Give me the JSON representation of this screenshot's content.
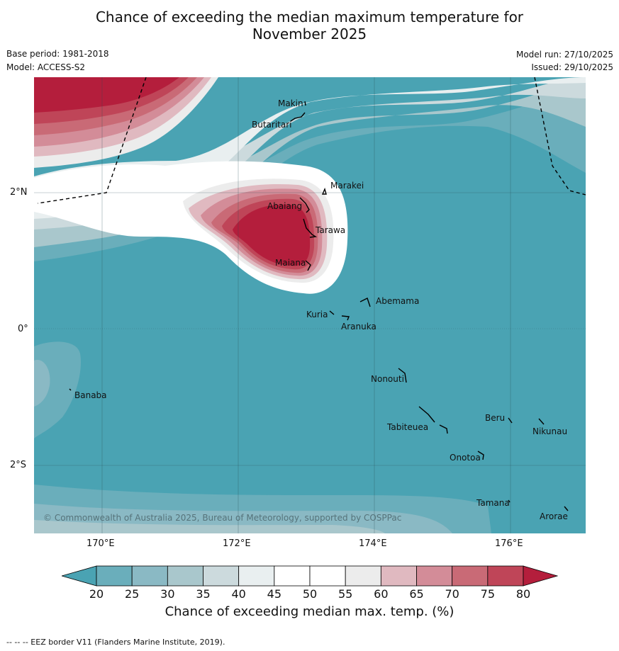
{
  "title_line1": "Chance of exceeding the median maximum temperature for",
  "title_line2": "November 2025",
  "meta": {
    "base_period": "Base period: 1981-2018",
    "model": "Model: ACCESS-S2",
    "model_run": "Model run: 27/10/2025",
    "issued": "Issued: 29/10/2025"
  },
  "map": {
    "lat_labels": [
      "2°N",
      "0°",
      "2°S"
    ],
    "lon_labels": [
      "170°E",
      "172°E",
      "174°E",
      "176°E"
    ],
    "places": [
      "Makin",
      "Butaritari",
      "Marakei",
      "Abaiang",
      "Tarawa",
      "Maiana",
      "Abemama",
      "Kuria",
      "Aranuka",
      "Nonouti",
      "Banaba",
      "Beru",
      "Tabiteuea",
      "Nikunau",
      "Onotoa",
      "Tamana",
      "Arorae"
    ],
    "copyright": "© Commonwealth of Australia 2025, Bureau of Meteorology, supported by COSPPac"
  },
  "colorbar": {
    "ticks": [
      "20",
      "25",
      "30",
      "35",
      "40",
      "45",
      "50",
      "55",
      "60",
      "65",
      "70",
      "75",
      "80"
    ],
    "colors": [
      "#6aaebb",
      "#8ab9c4",
      "#a9c7cc",
      "#ccdadd",
      "#e9eff0",
      "#ffffff",
      "#ffffff",
      "#ececec",
      "#e0b9c0",
      "#d38c98",
      "#c96a76",
      "#bf4558"
    ],
    "under_color": "#4aa3b3",
    "over_color": "#b41e3c",
    "title": "Chance of exceeding median max. temp. (%)"
  },
  "footer": "--  --  -- EEZ border V11 (Flanders Marine Institute, 2019)."
}
